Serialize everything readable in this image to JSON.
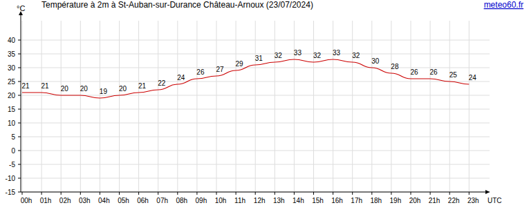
{
  "chart_data": {
    "type": "line",
    "title": "Température à 2m à St-Auban-sur-Durance Château-Arnoux (23/07/2024)",
    "source": "meteo60.fr",
    "ylabel": "°C",
    "xlabel": "UTC",
    "categories": [
      "00h",
      "01h",
      "02h",
      "03h",
      "04h",
      "05h",
      "06h",
      "07h",
      "08h",
      "09h",
      "10h",
      "11h",
      "12h",
      "13h",
      "14h",
      "15h",
      "16h",
      "17h",
      "18h",
      "19h",
      "20h",
      "21h",
      "22h",
      "23h"
    ],
    "values": [
      21,
      21,
      20,
      20,
      19,
      20,
      21,
      22,
      24,
      26,
      27,
      29,
      31,
      32,
      33,
      32,
      33,
      32,
      30,
      28,
      26,
      26,
      25,
      24
    ],
    "color": "#cc0000",
    "ylim": [
      -15,
      47
    ],
    "yticks": [
      -15,
      -10,
      -5,
      0,
      5,
      10,
      15,
      20,
      25,
      30,
      35,
      40
    ],
    "grid": true,
    "data_labels": true
  }
}
